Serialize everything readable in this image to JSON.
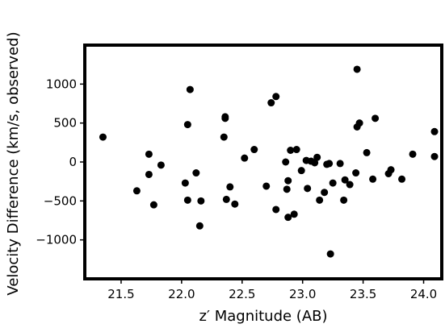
{
  "chart_data": {
    "type": "scatter",
    "title": "",
    "xlabel": "z′ Magnitude (AB)",
    "ylabel": "Velocity Difference (km/s, observed)",
    "xlim": [
      21.2,
      24.15
    ],
    "ylim": [
      -1500,
      1500
    ],
    "grid": false,
    "legend": "none",
    "marker_color": "#000000",
    "x_ticks": [
      "21.5",
      "22.0",
      "22.5",
      "23.0",
      "23.5",
      "24.0"
    ],
    "y_ticks": [
      "−1000",
      "−500",
      "0",
      "500",
      "1000"
    ],
    "x_tick_values": [
      21.5,
      22.0,
      22.5,
      23.0,
      23.5,
      24.0
    ],
    "y_tick_values": [
      -1000,
      -500,
      0,
      500,
      1000
    ],
    "points": [
      {
        "x": 21.35,
        "y": 320
      },
      {
        "x": 21.63,
        "y": -370
      },
      {
        "x": 21.73,
        "y": 100
      },
      {
        "x": 21.73,
        "y": -160
      },
      {
        "x": 21.77,
        "y": -550
      },
      {
        "x": 21.83,
        "y": -40
      },
      {
        "x": 22.03,
        "y": -270
      },
      {
        "x": 22.05,
        "y": 480
      },
      {
        "x": 22.05,
        "y": -490
      },
      {
        "x": 22.07,
        "y": 930
      },
      {
        "x": 22.12,
        "y": -140
      },
      {
        "x": 22.15,
        "y": -820
      },
      {
        "x": 22.16,
        "y": -500
      },
      {
        "x": 22.35,
        "y": 320
      },
      {
        "x": 22.36,
        "y": 580
      },
      {
        "x": 22.36,
        "y": 560
      },
      {
        "x": 22.37,
        "y": -480
      },
      {
        "x": 22.4,
        "y": -320
      },
      {
        "x": 22.44,
        "y": -540
      },
      {
        "x": 22.52,
        "y": 50
      },
      {
        "x": 22.6,
        "y": 160
      },
      {
        "x": 22.7,
        "y": -310
      },
      {
        "x": 22.74,
        "y": 760
      },
      {
        "x": 22.78,
        "y": 840
      },
      {
        "x": 22.78,
        "y": -610
      },
      {
        "x": 22.86,
        "y": 0
      },
      {
        "x": 22.87,
        "y": -350
      },
      {
        "x": 22.88,
        "y": -240
      },
      {
        "x": 22.88,
        "y": -710
      },
      {
        "x": 22.9,
        "y": 150
      },
      {
        "x": 22.93,
        "y": -670
      },
      {
        "x": 22.95,
        "y": 160
      },
      {
        "x": 22.99,
        "y": -110
      },
      {
        "x": 23.03,
        "y": 20
      },
      {
        "x": 23.04,
        "y": -340
      },
      {
        "x": 23.07,
        "y": 10
      },
      {
        "x": 23.1,
        "y": -10
      },
      {
        "x": 23.12,
        "y": 60
      },
      {
        "x": 23.14,
        "y": -490
      },
      {
        "x": 23.18,
        "y": -390
      },
      {
        "x": 23.2,
        "y": -30
      },
      {
        "x": 23.22,
        "y": -20
      },
      {
        "x": 23.23,
        "y": -1180
      },
      {
        "x": 23.25,
        "y": -270
      },
      {
        "x": 23.31,
        "y": -20
      },
      {
        "x": 23.34,
        "y": -490
      },
      {
        "x": 23.35,
        "y": -230
      },
      {
        "x": 23.39,
        "y": -290
      },
      {
        "x": 23.44,
        "y": -140
      },
      {
        "x": 23.45,
        "y": 1190
      },
      {
        "x": 23.45,
        "y": 450
      },
      {
        "x": 23.47,
        "y": 500
      },
      {
        "x": 23.53,
        "y": 120
      },
      {
        "x": 23.58,
        "y": -220
      },
      {
        "x": 23.6,
        "y": 560
      },
      {
        "x": 23.71,
        "y": -150
      },
      {
        "x": 23.73,
        "y": -100
      },
      {
        "x": 23.82,
        "y": -220
      },
      {
        "x": 23.91,
        "y": 100
      },
      {
        "x": 24.09,
        "y": 390
      },
      {
        "x": 24.09,
        "y": 70
      }
    ]
  }
}
